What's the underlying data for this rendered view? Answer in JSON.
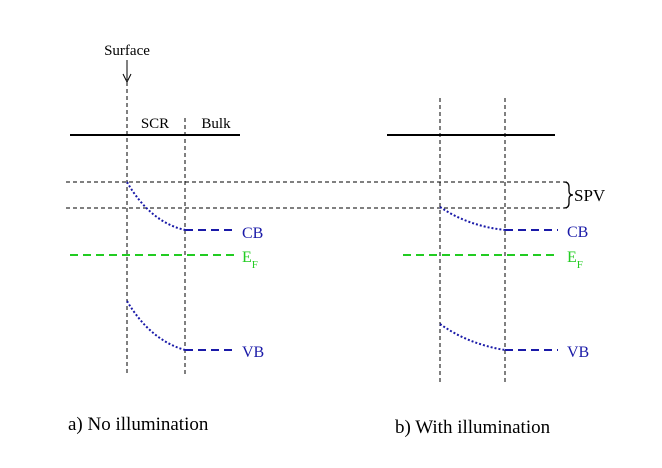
{
  "surface_label": "Surface",
  "region_labels": {
    "scr": "SCR",
    "bulk": "Bulk"
  },
  "band_labels": {
    "cb": "CB",
    "vb": "VB",
    "ef_main": "E",
    "ef_sub": "F"
  },
  "spv_label": "SPV",
  "panel_captions": {
    "a": "a) No illumination",
    "b": "b) With illumination"
  },
  "colors": {
    "band": "#1a1aa8",
    "fermi": "#22cc22",
    "line": "#000000"
  }
}
